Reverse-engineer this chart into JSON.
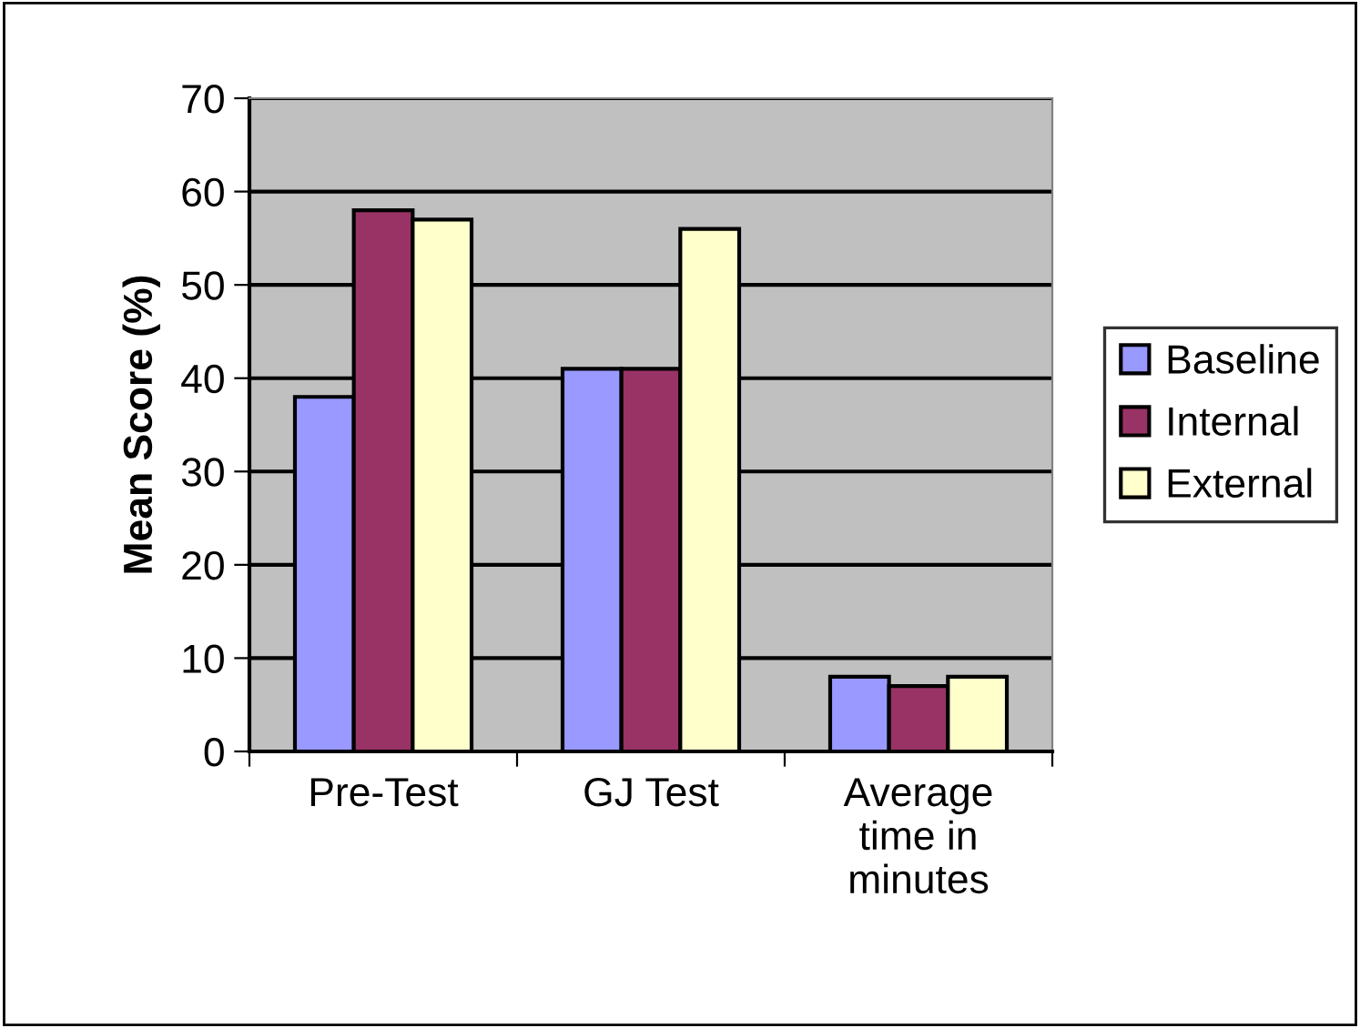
{
  "chart_data": {
    "type": "bar",
    "ylabel": "Mean Score (%)",
    "categories": [
      "Pre-Test",
      "GJ Test",
      "Average\ntime in\nminutes"
    ],
    "series": [
      {
        "name": "Baseline",
        "color": "#9999ff",
        "values": [
          38,
          41,
          8
        ]
      },
      {
        "name": "Internal",
        "color": "#993366",
        "values": [
          58,
          41,
          7
        ]
      },
      {
        "name": "External",
        "color": "#ffffcc",
        "values": [
          57,
          56,
          8
        ]
      }
    ],
    "ylim": [
      0,
      70
    ],
    "yticks": [
      0,
      10,
      20,
      30,
      40,
      50,
      60,
      70
    ],
    "grid": "y",
    "legend": "right"
  }
}
